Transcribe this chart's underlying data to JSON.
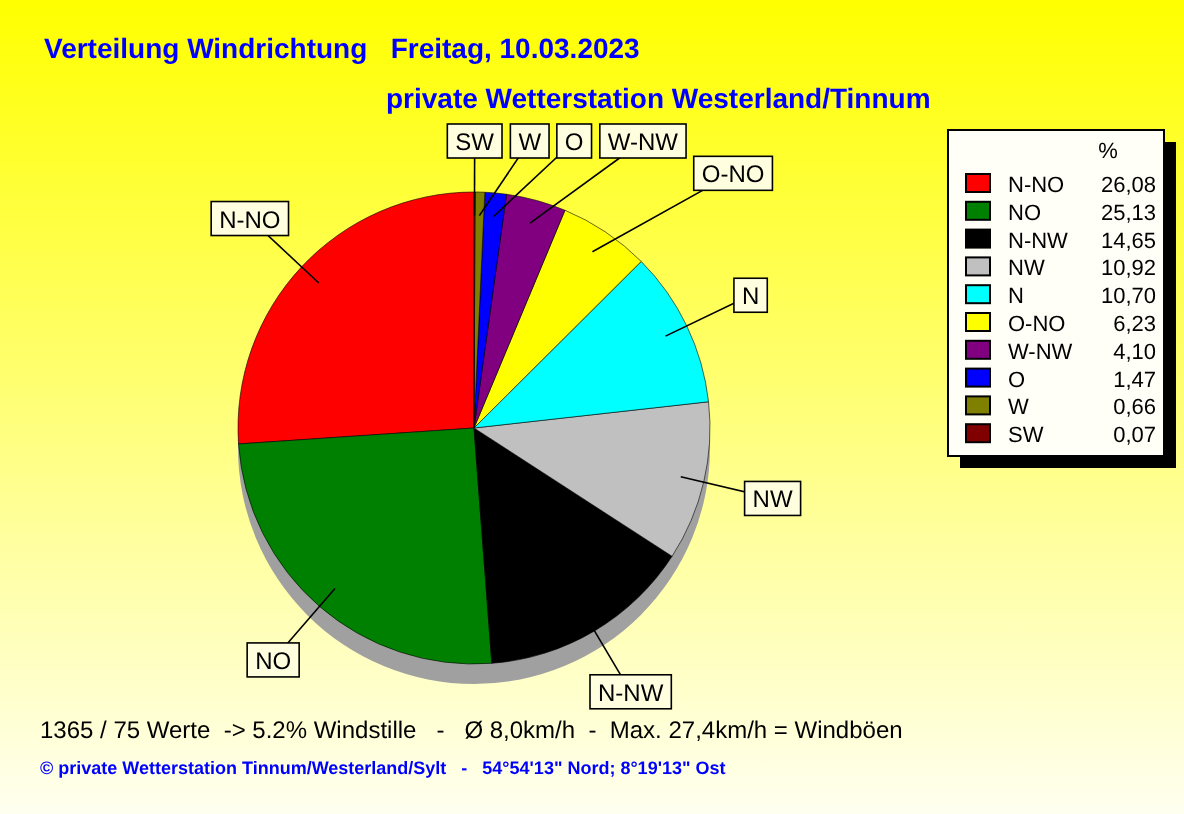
{
  "chart_data": {
    "type": "pie",
    "title": "Verteilung Windrichtung   Freitag, 10.03.2023",
    "subtitle": "private Wetterstation Westerland/Tinnum",
    "legend_title": "%",
    "categories": [
      "N-NO",
      "NO",
      "N-NW",
      "NW",
      "N",
      "O-NO",
      "W-NW",
      "O",
      "W",
      "SW"
    ],
    "values": [
      26.08,
      25.13,
      14.65,
      10.92,
      10.7,
      6.23,
      4.1,
      1.47,
      0.66,
      0.07
    ],
    "value_labels": [
      "26,08",
      "25,13",
      "14,65",
      "10,92",
      "10,70",
      "6,23",
      "4,10",
      "1,47",
      "0,66",
      "0,07"
    ],
    "colors": [
      "#ff0000",
      "#008000",
      "#000000",
      "#c0c0c0",
      "#00ffff",
      "#ffff00",
      "#800080",
      "#0000ff",
      "#808000",
      "#800000"
    ],
    "legend": "right",
    "annotations": [
      "1365 / 75 Werte  -> 5.2% Windstille   -   Ø 8,0km/h  -  Max. 27,4km/h = Windböen",
      "© private Wetterstation Tinnum/Westerland/Sylt   -   54°54'13\" Nord; 8°19'13\" Ost"
    ]
  }
}
